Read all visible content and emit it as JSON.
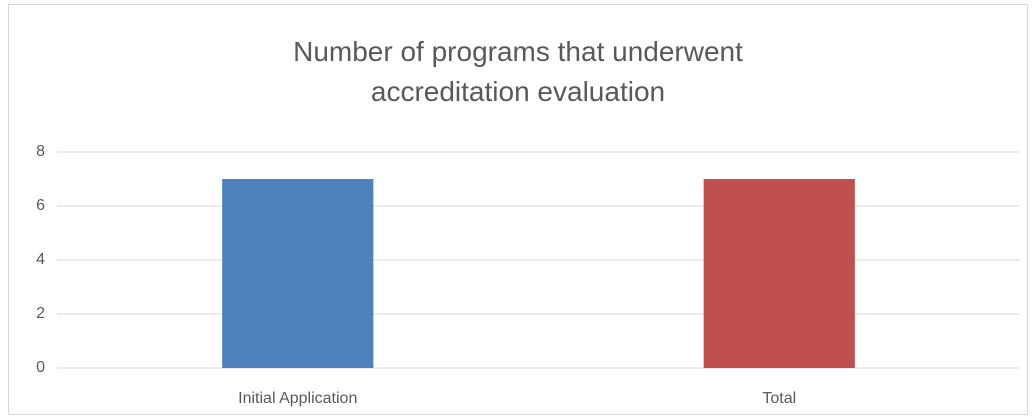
{
  "chart_data": {
    "type": "bar",
    "title": "Number of programs that underwent accreditation evaluation",
    "categories": [
      "Initial Application",
      "Total"
    ],
    "values": [
      7,
      7
    ],
    "colors": [
      "#4f81bd",
      "#c0504d"
    ],
    "ylim": [
      0,
      8
    ],
    "yticks": [
      0,
      2,
      4,
      6,
      8
    ],
    "grid": true
  }
}
